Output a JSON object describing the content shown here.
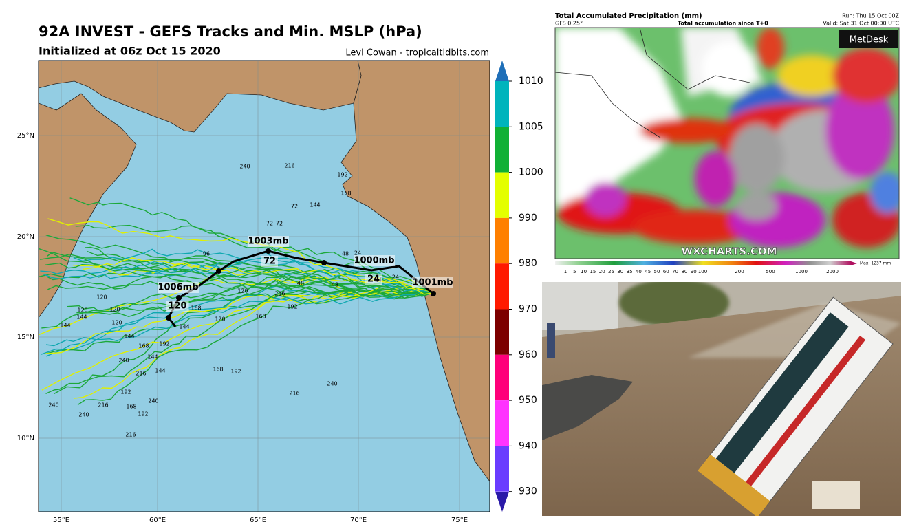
{
  "left_map": {
    "title": "92A INVEST - GEFS Tracks and Min. MSLP (hPa)",
    "subtitle": "Initialized at 06z Oct 15 2020",
    "credit": "Levi Cowan - tropicaltidbits.com",
    "lon_labels": [
      "55°E",
      "60°E",
      "65°E",
      "70°E",
      "75°E"
    ],
    "lat_labels": [
      "25°N",
      "20°N",
      "15°N",
      "10°N"
    ],
    "colorbar_ticks": [
      1010,
      1005,
      1000,
      990,
      980,
      970,
      960,
      950,
      940,
      930
    ],
    "mean_track_labels": [
      "1003mb",
      "72",
      "1000mb",
      "24",
      "1006mb",
      "120",
      "1001mb"
    ],
    "member_labels": [
      "240",
      "216",
      "192",
      "168",
      "144",
      "72",
      "72",
      "72",
      "96",
      "144",
      "240",
      "240",
      "216",
      "216",
      "192",
      "168",
      "192",
      "240",
      "240",
      "216",
      "144",
      "192",
      "168",
      "192",
      "168",
      "216",
      "240",
      "216",
      "192",
      "120",
      "120",
      "120",
      "144",
      "120",
      "144",
      "168",
      "144",
      "144",
      "168",
      "120",
      "120",
      "48",
      "24",
      "24",
      "48",
      "24",
      "48"
    ]
  },
  "precip_map": {
    "title": "Total Accumulated Precipitation (mm)",
    "model": "GFS 0.25°",
    "subtitle": "Total accumulation since T+0",
    "run": "Run: Thu 15 Oct 00Z",
    "valid": "Valid: Sat 31 Oct 00:00 UTC",
    "logo": "MetDesk",
    "watermark": "WXCHARTS.COM",
    "scale_labels": [
      "1",
      "5",
      "10",
      "15",
      "20",
      "25",
      "30",
      "35",
      "40",
      "45",
      "50",
      "60",
      "70",
      "80",
      "90",
      "100",
      "200",
      "500",
      "1000",
      "2000"
    ],
    "max_label": "Max: 1237 mm"
  }
}
